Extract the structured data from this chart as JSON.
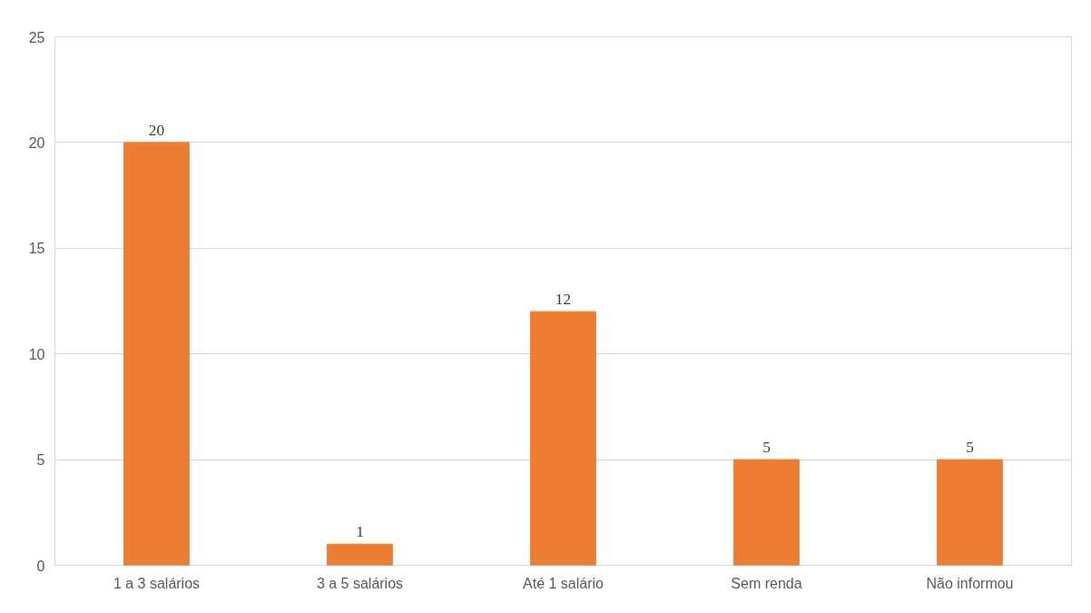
{
  "chart_data": {
    "type": "bar",
    "categories": [
      "1 a 3 salários",
      "3 a 5 salários",
      "Até 1 salário",
      "Sem renda",
      "Não informou"
    ],
    "values": [
      20,
      1,
      12,
      5,
      5
    ],
    "color": "#ed7d31",
    "ylim": [
      0,
      25
    ],
    "yticks": [
      0,
      5,
      10,
      15,
      20,
      25
    ],
    "grid": "y",
    "data_labels": true
  }
}
